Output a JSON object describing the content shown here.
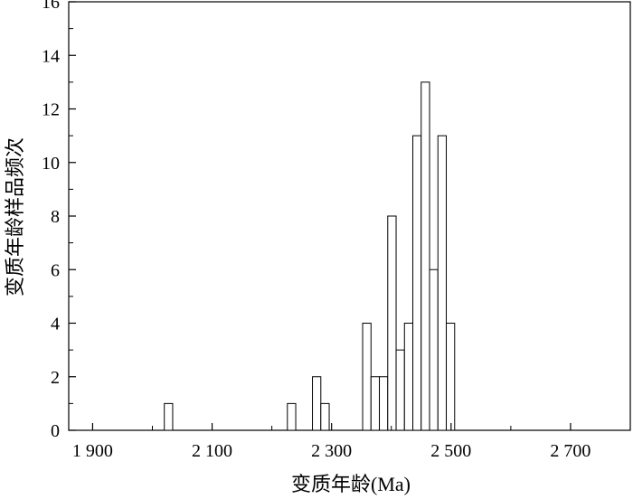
{
  "chart_data": {
    "type": "bar",
    "xlabel": "变质年龄(Ma)",
    "ylabel": "变质年龄样品频次",
    "xlim": [
      1860,
      2800
    ],
    "ylim": [
      0,
      16
    ],
    "bin_width": 14,
    "grid": false,
    "x_ticks": [
      {
        "value": 1900,
        "label": "1 900"
      },
      {
        "value": 2100,
        "label": "2 100"
      },
      {
        "value": 2300,
        "label": "2 300"
      },
      {
        "value": 2500,
        "label": "2 500"
      },
      {
        "value": 2700,
        "label": "2 700"
      }
    ],
    "y_ticks": [
      0,
      2,
      4,
      6,
      8,
      10,
      12,
      14,
      16
    ],
    "bins": [
      {
        "start": 2020,
        "count": 1
      },
      {
        "start": 2226,
        "count": 1
      },
      {
        "start": 2268,
        "count": 2
      },
      {
        "start": 2282,
        "count": 1
      },
      {
        "start": 2352,
        "count": 4
      },
      {
        "start": 2366,
        "count": 2
      },
      {
        "start": 2380,
        "count": 2
      },
      {
        "start": 2394,
        "count": 8
      },
      {
        "start": 2408,
        "count": 3
      },
      {
        "start": 2422,
        "count": 4
      },
      {
        "start": 2436,
        "count": 11
      },
      {
        "start": 2450,
        "count": 13
      },
      {
        "start": 2464,
        "count": 6
      },
      {
        "start": 2478,
        "count": 11
      },
      {
        "start": 2492,
        "count": 4
      }
    ]
  }
}
